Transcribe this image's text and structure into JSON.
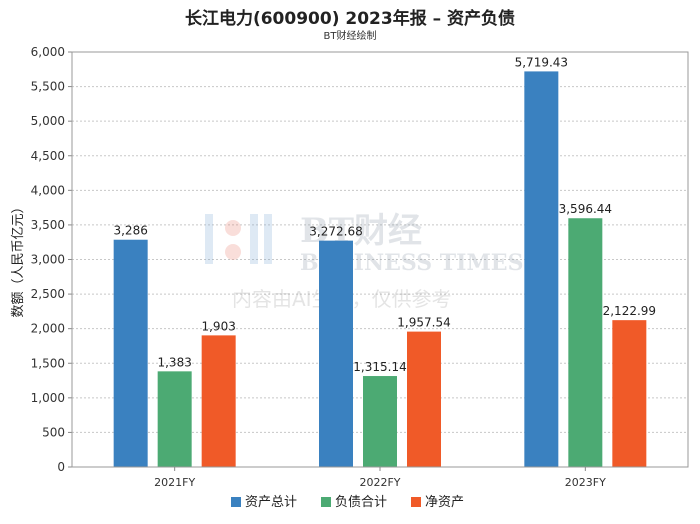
{
  "title": "长江电力(600900) 2023年报 – 资产负债",
  "subtitle": "BT财经绘制",
  "watermark": {
    "cn": "BT财经",
    "en": "BUSINESS TIMES",
    "note": "内容由AI生成，仅供参考"
  },
  "chart_data": {
    "type": "bar",
    "categories": [
      "2021FY",
      "2022FY",
      "2023FY"
    ],
    "series": [
      {
        "name": "资产总计",
        "color": "#3a81c0",
        "values": [
          3286,
          3272.68,
          5719.43
        ],
        "labels": [
          "3,286",
          "3,272.68",
          "5,719.43"
        ]
      },
      {
        "name": "负债合计",
        "color": "#4caa73",
        "values": [
          1383,
          1315.14,
          3596.44
        ],
        "labels": [
          "1,383",
          "1,315.14",
          "3,596.44"
        ]
      },
      {
        "name": "净资产",
        "color": "#f05a28",
        "values": [
          1903,
          1957.54,
          2122.99
        ],
        "labels": [
          "1,903",
          "1,957.54",
          "2,122.99"
        ]
      }
    ],
    "ylabel": "数额（人民币亿元）",
    "xlabel": "",
    "ylim": [
      0,
      6000
    ],
    "yticks": [
      0,
      500,
      1000,
      1500,
      2000,
      2500,
      3000,
      3500,
      4000,
      4500,
      5000,
      5500,
      6000
    ],
    "ytick_labels": [
      "0",
      "500",
      "1,000",
      "1,500",
      "2,000",
      "2,500",
      "3,000",
      "3,500",
      "4,000",
      "4,500",
      "5,000",
      "5,500",
      "6,000"
    ],
    "grid": true,
    "legend_position": "bottom"
  }
}
